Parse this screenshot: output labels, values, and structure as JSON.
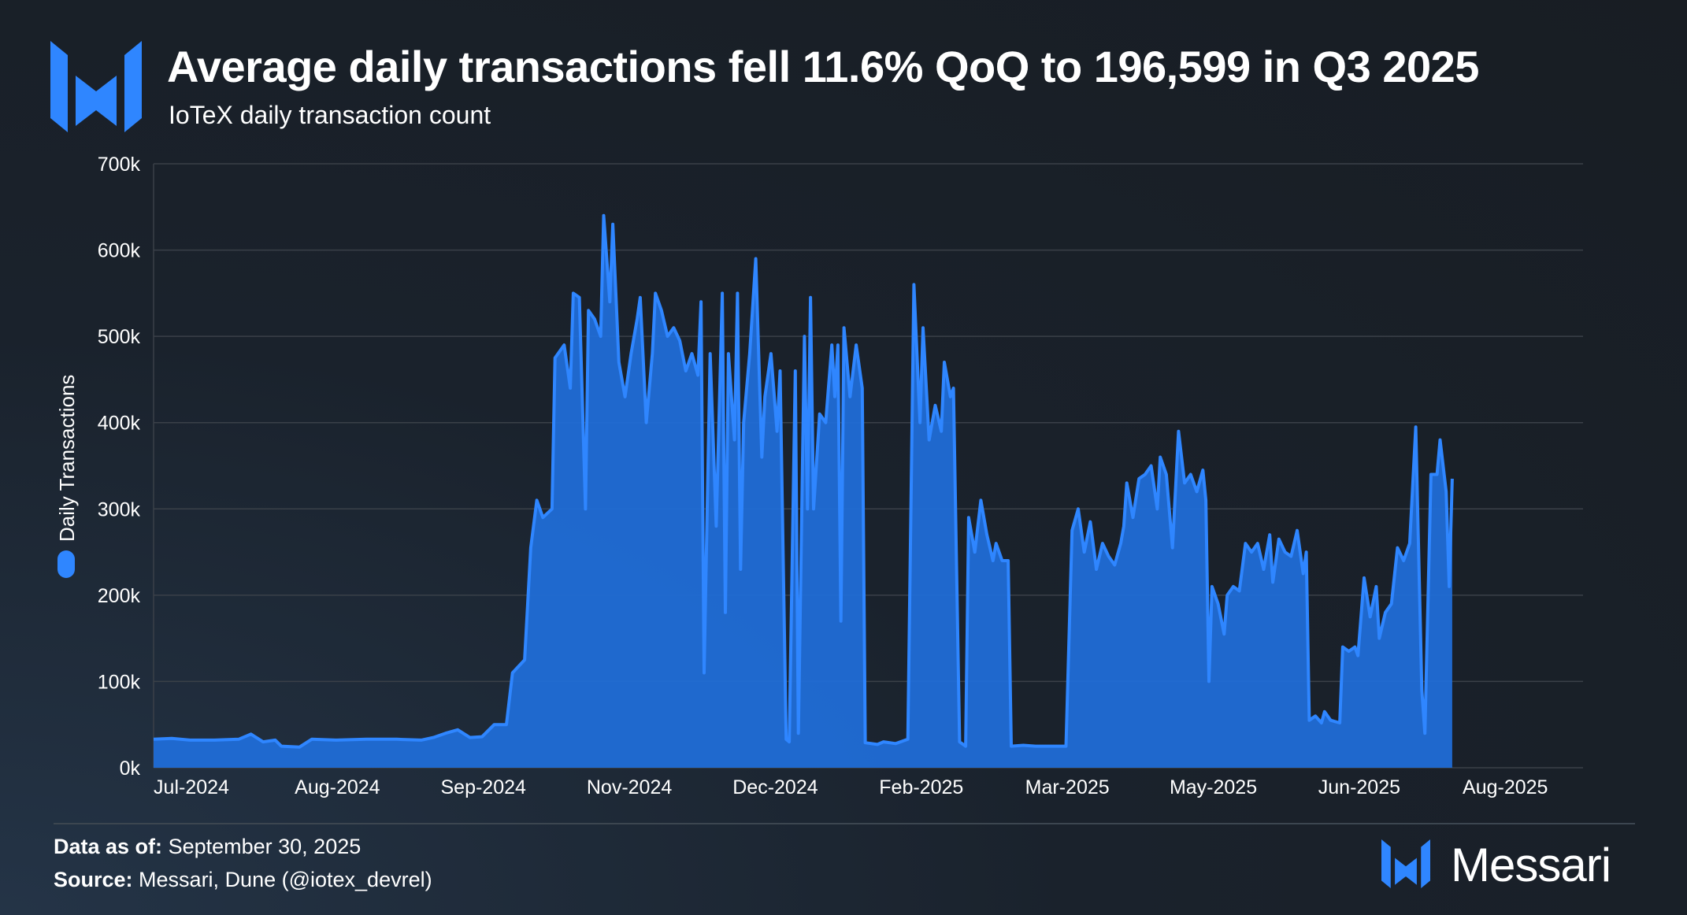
{
  "header": {
    "title": "Average daily transactions fell 11.6% QoQ to 196,599 in Q3 2025",
    "subtitle": "IoTeX daily transaction count"
  },
  "footer": {
    "data_as_of_label": "Data as of:",
    "data_as_of_value": "September 30, 2025",
    "source_label": "Source:",
    "source_value": "Messari, Dune (@iotex_devrel)",
    "brand": "Messari"
  },
  "colors": {
    "series": "#2f86ff",
    "area": "#1f6fdb",
    "grid": "#3a4048",
    "axis_text": "#ffffff"
  },
  "chart_data": {
    "type": "area",
    "title": "IoTeX daily transaction count",
    "xlabel": "",
    "ylabel": "Daily Transactions",
    "legend": {
      "label": "Daily Transactions",
      "placement": "left-vertical"
    },
    "ylim": [
      0,
      700000
    ],
    "y_ticks": [
      0,
      100000,
      200000,
      300000,
      400000,
      500000,
      600000,
      700000
    ],
    "y_tick_labels": [
      "0k",
      "100k",
      "200k",
      "300k",
      "400k",
      "500k",
      "600k",
      "700k"
    ],
    "x_range_days": [
      0,
      470
    ],
    "x_ticks": [
      {
        "day": 0,
        "label": "Jul-2024"
      },
      {
        "day": 48,
        "label": "Aug-2024"
      },
      {
        "day": 96,
        "label": "Sep-2024"
      },
      {
        "day": 144,
        "label": "Nov-2024"
      },
      {
        "day": 192,
        "label": "Dec-2024"
      },
      {
        "day": 240,
        "label": "Feb-2025"
      },
      {
        "day": 288,
        "label": "Mar-2025"
      },
      {
        "day": 336,
        "label": "May-2025"
      },
      {
        "day": 384,
        "label": "Jun-2025"
      },
      {
        "day": 432,
        "label": "Aug-2025"
      }
    ],
    "series": [
      {
        "name": "Daily Transactions",
        "points": [
          [
            0,
            33000
          ],
          [
            6,
            34000
          ],
          [
            12,
            32000
          ],
          [
            20,
            32000
          ],
          [
            28,
            33000
          ],
          [
            32,
            39000
          ],
          [
            36,
            30000
          ],
          [
            40,
            32000
          ],
          [
            42,
            25000
          ],
          [
            48,
            24000
          ],
          [
            52,
            33000
          ],
          [
            60,
            32000
          ],
          [
            70,
            33000
          ],
          [
            80,
            33000
          ],
          [
            88,
            32000
          ],
          [
            92,
            35000
          ],
          [
            96,
            40000
          ],
          [
            100,
            44000
          ],
          [
            104,
            35000
          ],
          [
            108,
            36000
          ],
          [
            112,
            50000
          ],
          [
            116,
            50000
          ],
          [
            118,
            110000
          ],
          [
            122,
            125000
          ],
          [
            124,
            255000
          ],
          [
            126,
            310000
          ],
          [
            128,
            290000
          ],
          [
            131,
            300000
          ],
          [
            132,
            475000
          ],
          [
            135,
            490000
          ],
          [
            137,
            440000
          ],
          [
            138,
            550000
          ],
          [
            140,
            545000
          ],
          [
            142,
            300000
          ],
          [
            143,
            530000
          ],
          [
            145,
            520000
          ],
          [
            147,
            500000
          ],
          [
            148,
            640000
          ],
          [
            150,
            540000
          ],
          [
            151,
            630000
          ],
          [
            153,
            470000
          ],
          [
            155,
            430000
          ],
          [
            157,
            480000
          ],
          [
            159,
            520000
          ],
          [
            160,
            545000
          ],
          [
            162,
            400000
          ],
          [
            164,
            480000
          ],
          [
            165,
            550000
          ],
          [
            167,
            530000
          ],
          [
            169,
            500000
          ],
          [
            171,
            510000
          ],
          [
            173,
            495000
          ],
          [
            175,
            460000
          ],
          [
            177,
            480000
          ],
          [
            179,
            455000
          ],
          [
            180,
            540000
          ],
          [
            181,
            110000
          ],
          [
            183,
            480000
          ],
          [
            185,
            280000
          ],
          [
            187,
            550000
          ],
          [
            188,
            180000
          ],
          [
            189,
            480000
          ],
          [
            191,
            380000
          ],
          [
            192,
            550000
          ],
          [
            193,
            230000
          ],
          [
            194,
            400000
          ],
          [
            196,
            480000
          ],
          [
            198,
            590000
          ],
          [
            200,
            360000
          ],
          [
            201,
            430000
          ],
          [
            203,
            480000
          ],
          [
            205,
            390000
          ],
          [
            206,
            460000
          ],
          [
            208,
            33000
          ],
          [
            209,
            30000
          ],
          [
            211,
            460000
          ],
          [
            212,
            40000
          ],
          [
            214,
            500000
          ],
          [
            215,
            300000
          ],
          [
            216,
            545000
          ],
          [
            217,
            300000
          ],
          [
            219,
            410000
          ],
          [
            221,
            400000
          ],
          [
            223,
            490000
          ],
          [
            224,
            430000
          ],
          [
            225,
            490000
          ],
          [
            226,
            170000
          ],
          [
            227,
            510000
          ],
          [
            229,
            430000
          ],
          [
            231,
            490000
          ],
          [
            233,
            440000
          ],
          [
            234,
            29000
          ],
          [
            238,
            27000
          ],
          [
            240,
            30000
          ],
          [
            244,
            28000
          ],
          [
            248,
            33000
          ],
          [
            250,
            560000
          ],
          [
            252,
            400000
          ],
          [
            253,
            510000
          ],
          [
            255,
            380000
          ],
          [
            257,
            420000
          ],
          [
            259,
            390000
          ],
          [
            260,
            470000
          ],
          [
            262,
            430000
          ],
          [
            263,
            440000
          ],
          [
            265,
            30000
          ],
          [
            267,
            25000
          ],
          [
            268,
            290000
          ],
          [
            270,
            250000
          ],
          [
            272,
            310000
          ],
          [
            274,
            270000
          ],
          [
            276,
            240000
          ],
          [
            277,
            260000
          ],
          [
            279,
            240000
          ],
          [
            281,
            240000
          ],
          [
            282,
            25000
          ],
          [
            286,
            26000
          ],
          [
            290,
            25000
          ],
          [
            296,
            25000
          ],
          [
            300,
            25000
          ],
          [
            302,
            275000
          ],
          [
            304,
            300000
          ],
          [
            306,
            250000
          ],
          [
            308,
            285000
          ],
          [
            310,
            230000
          ],
          [
            312,
            260000
          ],
          [
            314,
            245000
          ],
          [
            316,
            235000
          ],
          [
            318,
            260000
          ],
          [
            319,
            280000
          ],
          [
            320,
            330000
          ],
          [
            322,
            290000
          ],
          [
            324,
            335000
          ],
          [
            326,
            340000
          ],
          [
            328,
            350000
          ],
          [
            330,
            300000
          ],
          [
            331,
            360000
          ],
          [
            333,
            340000
          ],
          [
            335,
            255000
          ],
          [
            337,
            390000
          ],
          [
            339,
            330000
          ],
          [
            341,
            340000
          ],
          [
            343,
            320000
          ],
          [
            345,
            345000
          ],
          [
            346,
            310000
          ],
          [
            347,
            100000
          ],
          [
            348,
            210000
          ],
          [
            350,
            190000
          ],
          [
            352,
            155000
          ],
          [
            353,
            200000
          ],
          [
            355,
            210000
          ],
          [
            357,
            205000
          ],
          [
            359,
            260000
          ],
          [
            361,
            250000
          ],
          [
            363,
            260000
          ],
          [
            365,
            230000
          ],
          [
            367,
            270000
          ],
          [
            368,
            215000
          ],
          [
            370,
            265000
          ],
          [
            372,
            250000
          ],
          [
            374,
            245000
          ],
          [
            376,
            275000
          ],
          [
            378,
            225000
          ],
          [
            379,
            250000
          ],
          [
            380,
            55000
          ],
          [
            382,
            60000
          ],
          [
            384,
            52000
          ],
          [
            385,
            65000
          ],
          [
            387,
            55000
          ],
          [
            390,
            52000
          ],
          [
            391,
            140000
          ],
          [
            393,
            135000
          ],
          [
            395,
            140000
          ],
          [
            396,
            130000
          ],
          [
            398,
            220000
          ],
          [
            400,
            175000
          ],
          [
            402,
            210000
          ],
          [
            403,
            150000
          ],
          [
            405,
            180000
          ],
          [
            407,
            190000
          ],
          [
            409,
            255000
          ],
          [
            411,
            240000
          ],
          [
            413,
            260000
          ],
          [
            415,
            395000
          ],
          [
            417,
            90000
          ],
          [
            418,
            40000
          ],
          [
            420,
            340000
          ],
          [
            422,
            340000
          ],
          [
            423,
            380000
          ],
          [
            425,
            320000
          ],
          [
            426,
            210000
          ],
          [
            427,
            335000
          ]
        ]
      }
    ]
  }
}
